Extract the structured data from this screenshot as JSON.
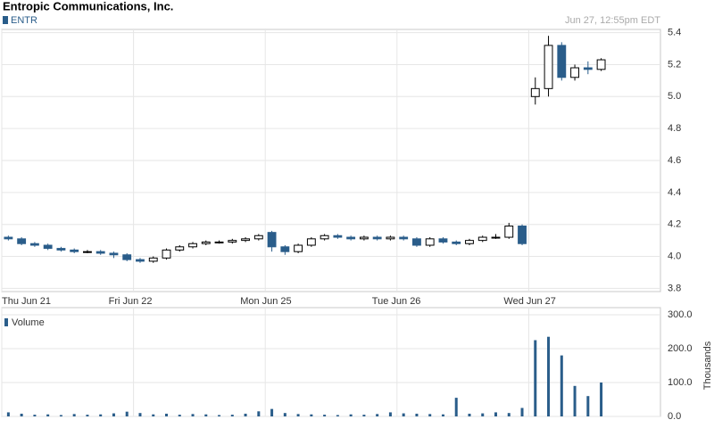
{
  "title": "Entropic Communications, Inc.",
  "timestamp": "Jun 27, 12:55pm EDT",
  "chart_data": {
    "type": "candlestick",
    "categories": [
      "Thu Jun 21",
      null,
      null,
      null,
      null,
      null,
      null,
      null,
      null,
      null,
      "Fri Jun 22",
      null,
      null,
      null,
      null,
      null,
      null,
      null,
      null,
      null,
      "Mon Jun 25",
      null,
      null,
      null,
      null,
      null,
      null,
      null,
      null,
      null,
      "Tue Jun 26",
      null,
      null,
      null,
      null,
      null,
      null,
      null,
      null,
      null,
      "Wed Jun 27",
      null,
      null,
      null,
      null,
      null,
      null,
      null,
      null,
      null
    ],
    "series": [
      {
        "name": "ENTR",
        "color": "#2a5d8a",
        "open": [
          4.12,
          4.11,
          4.08,
          4.07,
          4.05,
          4.04,
          4.03,
          4.03,
          4.02,
          4.01,
          3.98,
          3.97,
          3.99,
          4.04,
          4.06,
          4.08,
          4.09,
          4.09,
          4.1,
          4.11,
          4.15,
          4.06,
          4.03,
          4.07,
          4.11,
          4.13,
          4.12,
          4.11,
          4.12,
          4.11,
          4.12,
          4.11,
          4.07,
          4.11,
          4.09,
          4.08,
          4.1,
          4.12,
          4.12,
          4.19,
          5.0,
          5.05,
          5.32,
          5.12,
          5.18,
          5.17,
          null,
          null,
          null,
          null
        ],
        "high": [
          4.13,
          4.12,
          4.09,
          4.08,
          4.06,
          4.05,
          4.04,
          4.04,
          4.03,
          4.02,
          3.99,
          4.0,
          4.05,
          4.07,
          4.09,
          4.1,
          4.1,
          4.11,
          4.12,
          4.14,
          4.16,
          4.07,
          4.08,
          4.12,
          4.14,
          4.14,
          4.13,
          4.13,
          4.13,
          4.13,
          4.13,
          4.12,
          4.12,
          4.12,
          4.1,
          4.11,
          4.13,
          4.14,
          4.21,
          4.2,
          5.12,
          5.38,
          5.34,
          5.2,
          5.22,
          5.24,
          null,
          null,
          null,
          null
        ],
        "low": [
          4.1,
          4.07,
          4.06,
          4.04,
          4.03,
          4.02,
          4.02,
          4.01,
          3.99,
          3.97,
          3.96,
          3.96,
          3.98,
          4.03,
          4.05,
          4.07,
          4.08,
          4.08,
          4.09,
          4.1,
          4.03,
          4.01,
          4.02,
          4.06,
          4.1,
          4.11,
          4.1,
          4.1,
          4.1,
          4.1,
          4.1,
          4.06,
          4.06,
          4.08,
          4.07,
          4.07,
          4.09,
          4.11,
          4.11,
          4.07,
          4.95,
          5.0,
          5.1,
          5.1,
          5.14,
          5.16,
          null,
          null,
          null,
          null
        ],
        "close": [
          4.11,
          4.08,
          4.07,
          4.05,
          4.04,
          4.03,
          4.03,
          4.02,
          4.01,
          3.98,
          3.97,
          3.99,
          4.04,
          4.06,
          4.08,
          4.09,
          4.09,
          4.1,
          4.11,
          4.13,
          4.06,
          4.03,
          4.07,
          4.11,
          4.13,
          4.12,
          4.11,
          4.12,
          4.11,
          4.12,
          4.11,
          4.07,
          4.11,
          4.09,
          4.08,
          4.1,
          4.12,
          4.12,
          4.19,
          4.08,
          5.05,
          5.32,
          5.12,
          5.18,
          5.17,
          5.23,
          null,
          null,
          null,
          null
        ]
      },
      {
        "name": "Volume",
        "color": "#2a5d8a",
        "axis": "y2",
        "values": [
          12,
          8,
          5,
          6,
          4,
          7,
          5,
          6,
          9,
          14,
          10,
          6,
          8,
          5,
          7,
          6,
          4,
          5,
          8,
          15,
          22,
          10,
          7,
          6,
          5,
          4,
          6,
          5,
          7,
          12,
          9,
          8,
          7,
          6,
          55,
          8,
          9,
          12,
          10,
          25,
          225,
          235,
          180,
          90,
          60,
          100,
          null,
          null,
          null,
          null
        ]
      }
    ],
    "ylim": [
      3.78,
      5.42
    ],
    "yticks": [
      3.8,
      {
        "value": 4,
        "label": "4.0"
      },
      4.2,
      4.4,
      4.6,
      4.8,
      {
        "value": 5,
        "label": "5.0"
      },
      5.2,
      5.4
    ],
    "y2lim": [
      0,
      300
    ],
    "y2ticks": [
      {
        "value": 0,
        "label": "0.0"
      },
      {
        "value": 100,
        "label": "100.0"
      },
      {
        "value": 200,
        "label": "200.0"
      },
      {
        "value": 300,
        "label": "300.0"
      }
    ],
    "y2_label": "Thousands",
    "grid": true
  }
}
